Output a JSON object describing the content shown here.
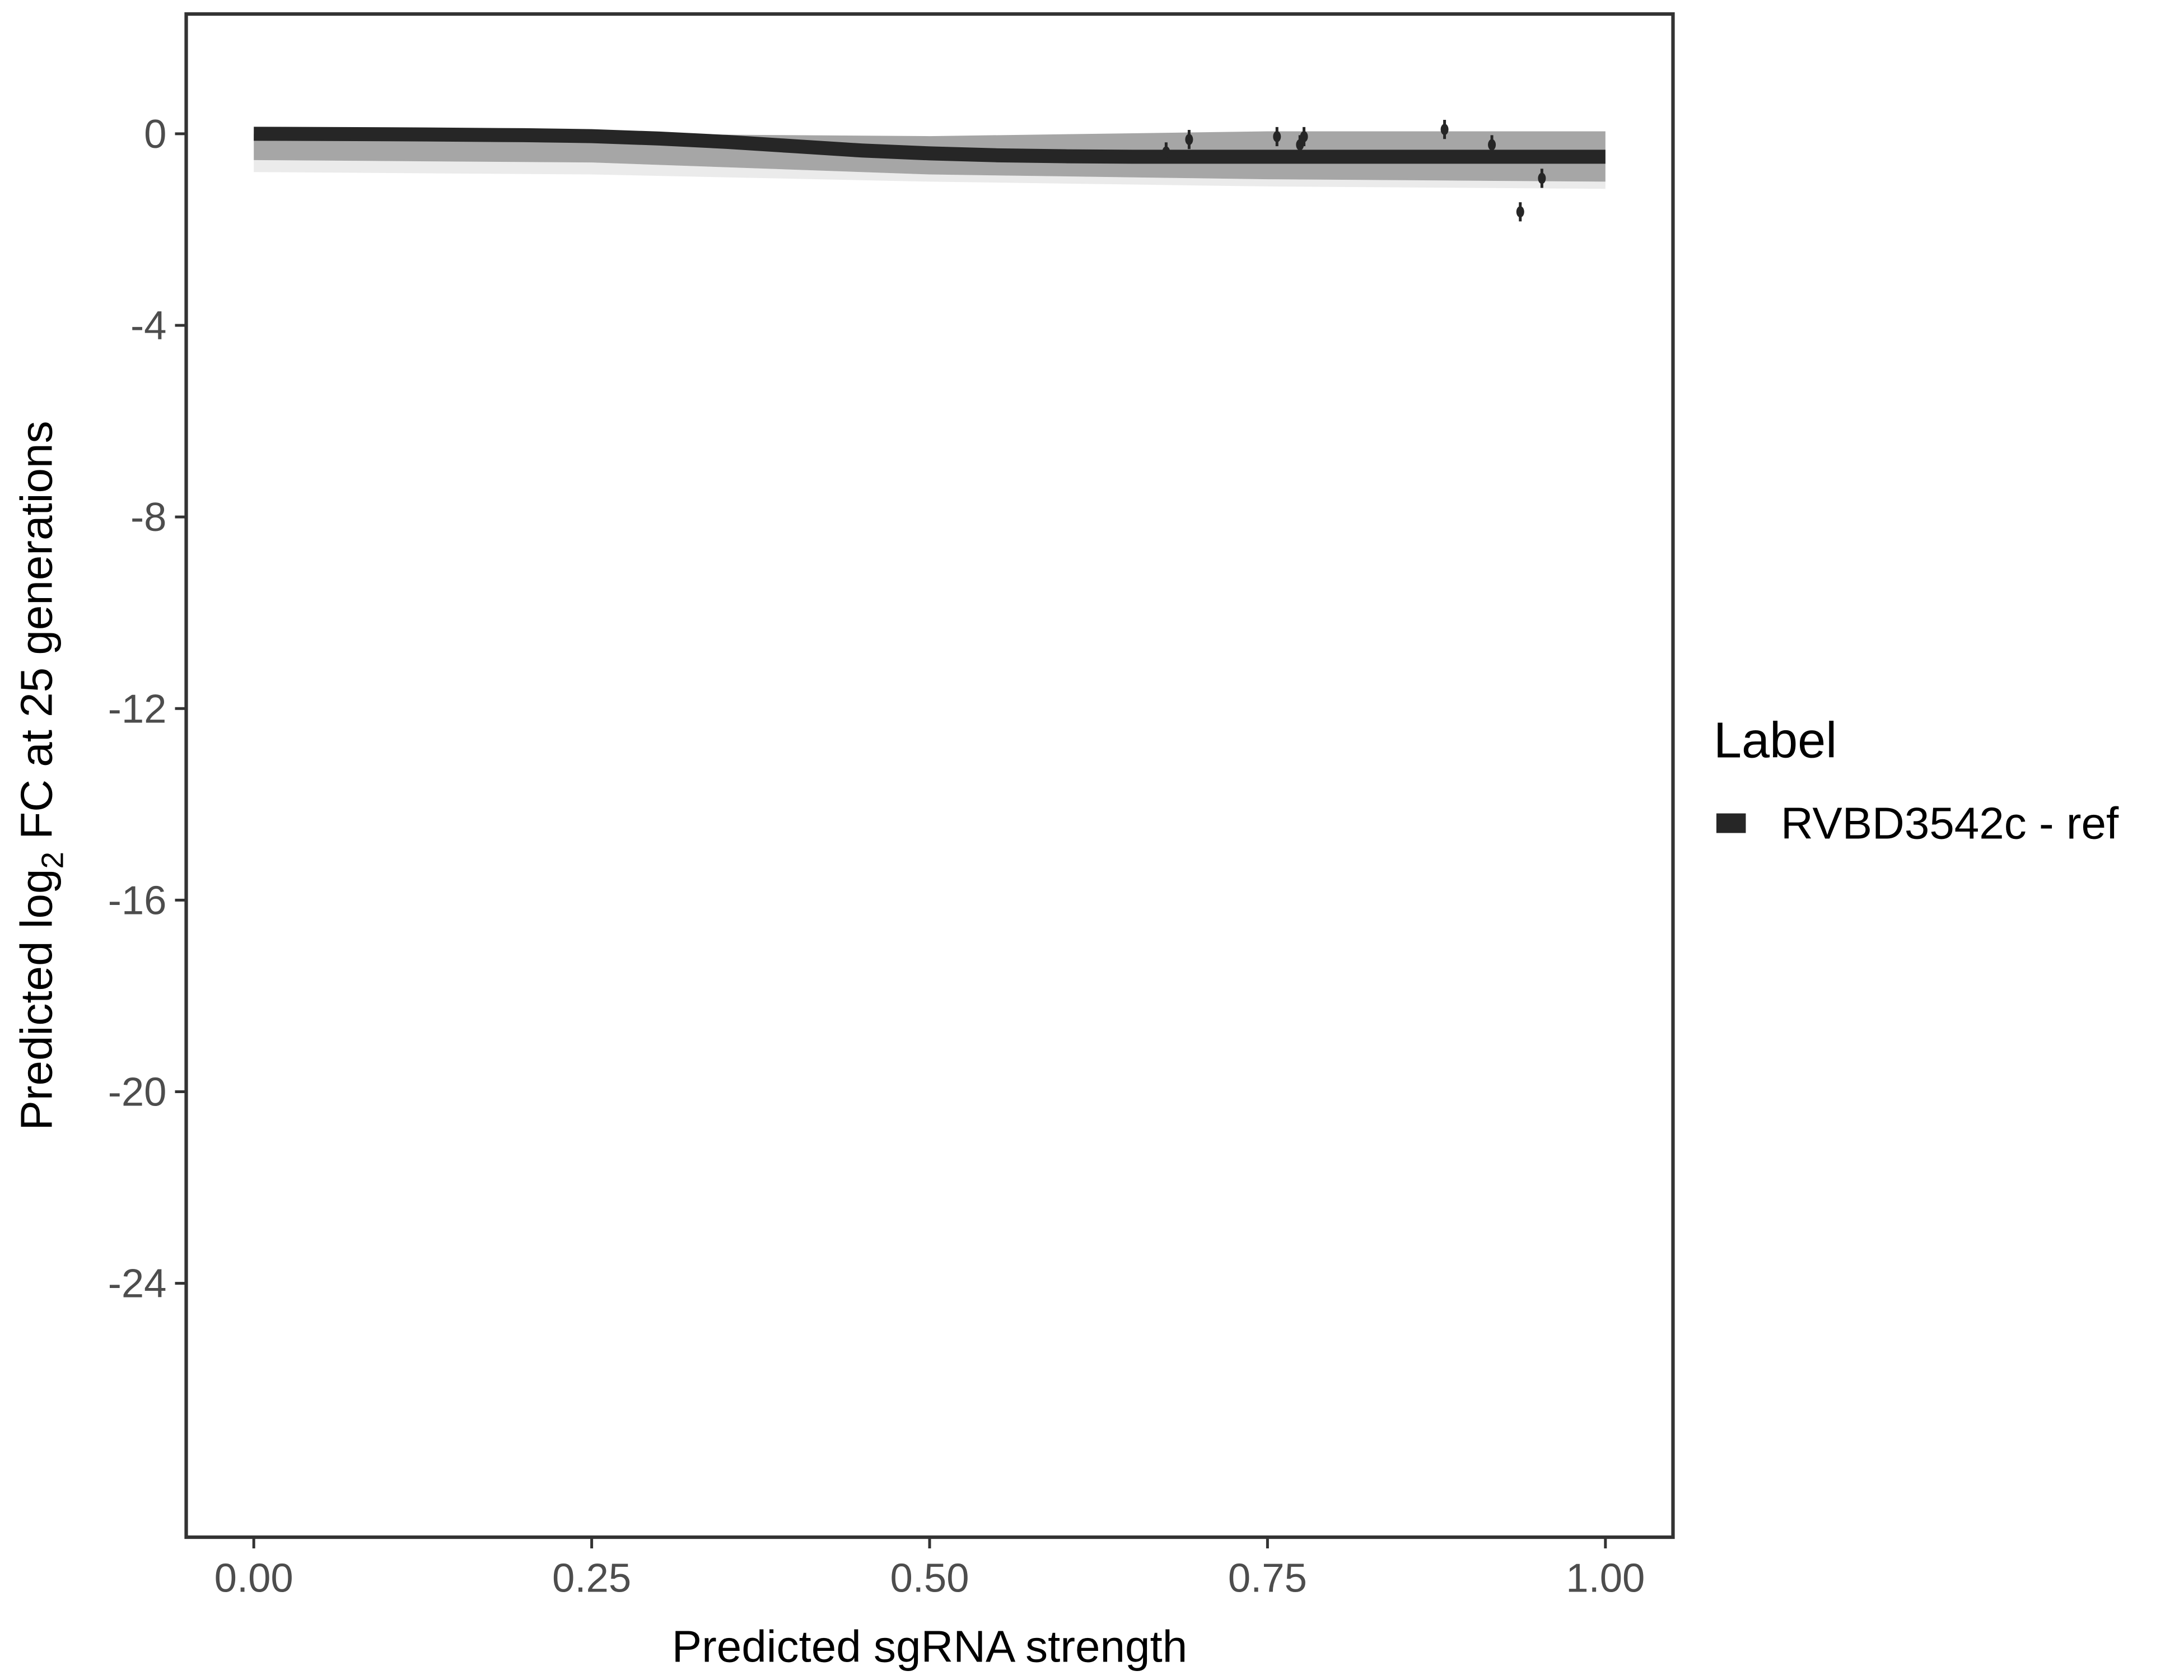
{
  "chart_data": {
    "type": "line",
    "xlabel": "Predicted sgRNA strength",
    "ylabel_parts": {
      "pre": "Predicted  log",
      "sub": "2",
      "post": " FC at 25 generations"
    },
    "xlim": [
      -0.05,
      1.05
    ],
    "ylim": [
      -29.3,
      2.5
    ],
    "x_ticks": [
      0,
      0.25,
      0.5,
      0.75,
      1.0
    ],
    "x_tick_labels": [
      "0.00",
      "0.25",
      "0.50",
      "0.75",
      "1.00"
    ],
    "y_ticks": [
      0,
      -4,
      -8,
      -12,
      -16,
      -20,
      -24
    ],
    "y_tick_labels": [
      "0",
      "-4",
      "-8",
      "-12",
      "-16",
      "-20",
      "-24"
    ],
    "grid": false,
    "legend": {
      "title": "Label",
      "placement": "right",
      "entries": [
        {
          "label": "RVBD3542c - ref",
          "color": "#262626"
        }
      ]
    },
    "fit_line": {
      "name": "RVBD3542c - ref",
      "color": "#262626",
      "x": [
        0,
        0.1,
        0.2,
        0.25,
        0.3,
        0.35,
        0.4,
        0.45,
        0.5,
        0.55,
        0.6,
        0.65,
        0.7,
        0.8,
        0.9,
        1.0
      ],
      "y": [
        0,
        -0.01,
        -0.03,
        -0.05,
        -0.1,
        -0.17,
        -0.26,
        -0.35,
        -0.41,
        -0.45,
        -0.47,
        -0.48,
        -0.48,
        -0.48,
        -0.48,
        -0.48
      ]
    },
    "ribbon": {
      "color": "#a6a6a6",
      "x": [
        0,
        0.25,
        0.5,
        0.75,
        1.0
      ],
      "upper": [
        0,
        0,
        -0.05,
        0.05,
        0.05
      ],
      "lower": [
        -0.55,
        -0.6,
        -0.85,
        -0.95,
        -1.0
      ],
      "faint_lower": [
        -0.8,
        -0.85,
        -1.0,
        -1.1,
        -1.15
      ]
    },
    "points": {
      "color": "#262626",
      "x": [
        0.675,
        0.692,
        0.757,
        0.774,
        0.777,
        0.881,
        0.916,
        0.937,
        0.953
      ],
      "y": [
        -0.38,
        -0.12,
        -0.06,
        -0.23,
        -0.06,
        0.09,
        -0.23,
        -1.63,
        -0.93
      ],
      "err": [
        0.2,
        0.2,
        0.2,
        0.2,
        0.2,
        0.2,
        0.2,
        0.2,
        0.2
      ]
    }
  }
}
